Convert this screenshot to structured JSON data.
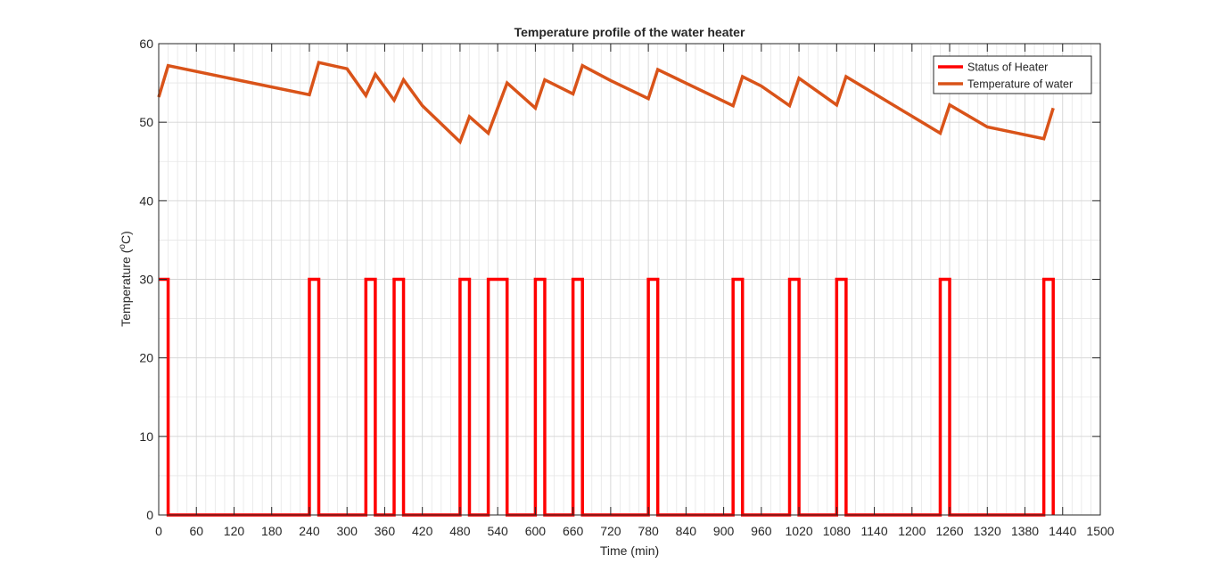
{
  "chart_data": {
    "type": "line",
    "title": "Temperature profile of the water heater",
    "xlabel": "Time (min)",
    "ylabel_main": "Temperature (",
    "ylabel_sup": "o",
    "ylabel_end": "C)",
    "xlim": [
      0,
      1500
    ],
    "ylim": [
      0,
      60
    ],
    "xticks": [
      0,
      60,
      120,
      180,
      240,
      300,
      360,
      420,
      480,
      540,
      600,
      660,
      720,
      780,
      840,
      900,
      960,
      1020,
      1080,
      1140,
      1200,
      1260,
      1320,
      1380,
      1440,
      1500
    ],
    "yticks": [
      0,
      10,
      20,
      30,
      40,
      50,
      60
    ],
    "minor_x_step": 15,
    "minor_y_step": 5,
    "grid": true,
    "legend_position": "top-right",
    "series": [
      {
        "name": "Status of Heater",
        "color": "#ff0000",
        "x": [
          0,
          15,
          15,
          240,
          240,
          255,
          255,
          330,
          330,
          345,
          345,
          375,
          375,
          390,
          390,
          480,
          480,
          495,
          495,
          525,
          525,
          555,
          555,
          600,
          600,
          615,
          615,
          660,
          660,
          675,
          675,
          780,
          780,
          795,
          795,
          915,
          915,
          930,
          930,
          1005,
          1005,
          1020,
          1020,
          1080,
          1080,
          1095,
          1095,
          1245,
          1245,
          1260,
          1260,
          1410,
          1410,
          1425,
          1425
        ],
        "y": [
          30,
          30,
          0,
          0,
          30,
          30,
          0,
          0,
          30,
          30,
          0,
          0,
          30,
          30,
          0,
          0,
          30,
          30,
          0,
          0,
          30,
          30,
          0,
          0,
          30,
          30,
          0,
          0,
          30,
          30,
          0,
          0,
          30,
          30,
          0,
          0,
          30,
          30,
          0,
          0,
          30,
          30,
          0,
          0,
          30,
          30,
          0,
          0,
          30,
          30,
          0,
          0,
          30,
          30,
          0
        ]
      },
      {
        "name": "Temperature of water",
        "color": "#d95319",
        "x": [
          0,
          15,
          240,
          255,
          300,
          330,
          345,
          375,
          390,
          420,
          480,
          495,
          525,
          555,
          600,
          615,
          660,
          675,
          720,
          780,
          795,
          915,
          930,
          960,
          1005,
          1020,
          1080,
          1095,
          1245,
          1260,
          1320,
          1410,
          1425
        ],
        "y": [
          53.2,
          57.2,
          53.5,
          57.6,
          56.8,
          53.4,
          56.1,
          52.8,
          55.4,
          52.1,
          47.5,
          50.7,
          48.6,
          55.0,
          51.8,
          55.4,
          53.6,
          57.2,
          55.3,
          53.0,
          56.7,
          52.1,
          55.8,
          54.6,
          52.1,
          55.6,
          52.2,
          55.8,
          48.6,
          52.2,
          49.4,
          47.9,
          51.8
        ]
      }
    ]
  }
}
